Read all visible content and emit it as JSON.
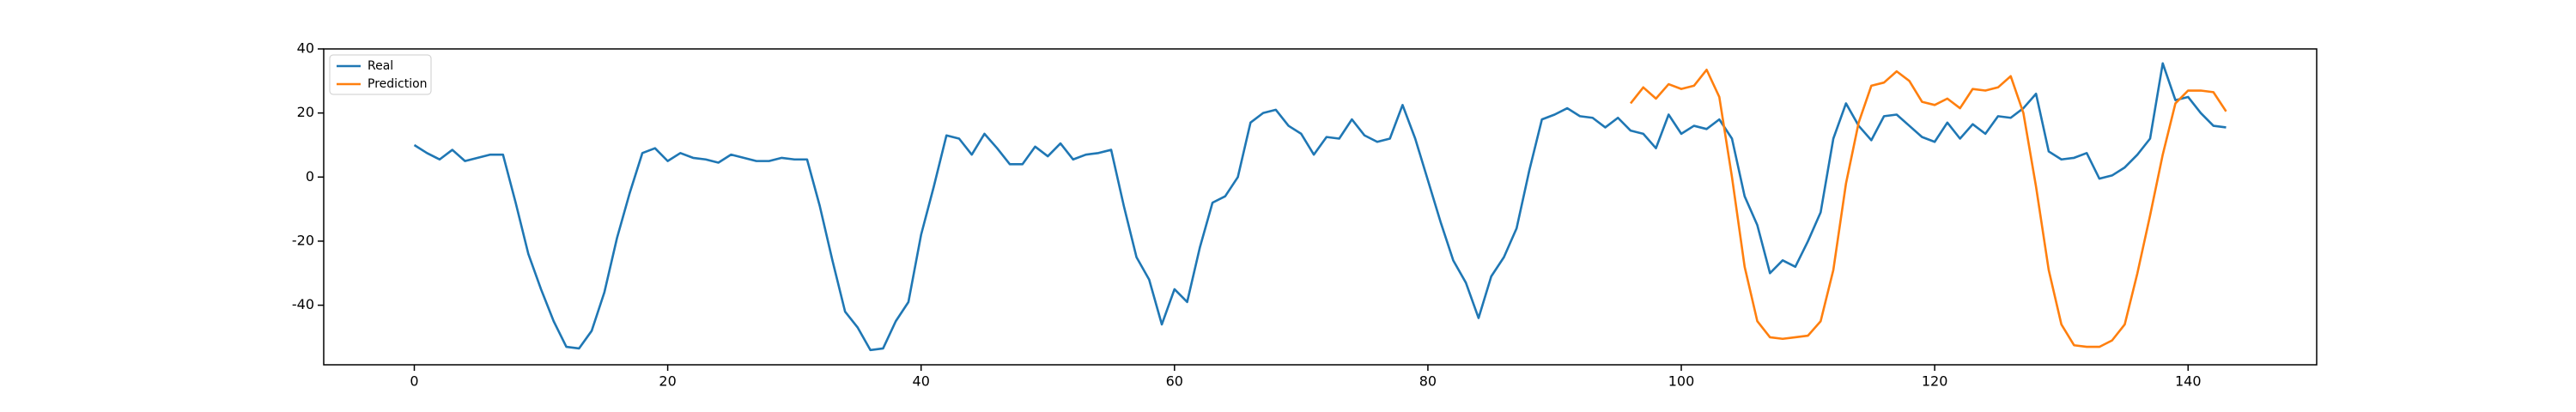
{
  "chart_data": {
    "type": "line",
    "xlim": [
      -7.15,
      150.15
    ],
    "ylim": [
      -58.6,
      40.0
    ],
    "xticks": [
      0,
      20,
      40,
      60,
      80,
      100,
      120,
      140
    ],
    "yticks": [
      -40,
      -20,
      0,
      20,
      40
    ],
    "legend": "upper left",
    "series": [
      {
        "name": "Real",
        "color": "#1f77b4",
        "x": [
          0,
          1,
          2,
          3,
          4,
          5,
          6,
          7,
          8,
          9,
          10,
          11,
          12,
          13,
          14,
          15,
          16,
          17,
          18,
          19,
          20,
          21,
          22,
          23,
          24,
          25,
          26,
          27,
          28,
          29,
          30,
          31,
          32,
          33,
          34,
          35,
          36,
          37,
          38,
          39,
          40,
          41,
          42,
          43,
          44,
          45,
          46,
          47,
          48,
          49,
          50,
          51,
          52,
          53,
          54,
          55,
          56,
          57,
          58,
          59,
          60,
          61,
          62,
          63,
          64,
          65,
          66,
          67,
          68,
          69,
          70,
          71,
          72,
          73,
          74,
          75,
          76,
          77,
          78,
          79,
          80,
          81,
          82,
          83,
          84,
          85,
          86,
          87,
          88,
          89,
          90,
          91,
          92,
          93,
          94,
          95,
          96,
          97,
          98,
          99,
          100,
          101,
          102,
          103,
          104,
          105,
          106,
          107,
          108,
          109,
          110,
          111,
          112,
          113,
          114,
          115,
          116,
          117,
          118,
          119,
          120,
          121,
          122,
          123,
          124,
          125,
          126,
          127,
          128,
          129,
          130,
          131,
          132,
          133,
          134,
          135,
          136,
          137,
          138,
          139,
          140,
          141,
          142,
          143
        ],
        "values": [
          10,
          7.5,
          5.5,
          8.5,
          5,
          6,
          7,
          7,
          -8,
          -24,
          -35,
          -45,
          -53,
          -53.5,
          -48,
          -36,
          -19,
          -5,
          7.5,
          9,
          5,
          7.5,
          6,
          5.5,
          4.5,
          7,
          6,
          5,
          5,
          6,
          5.5,
          5.5,
          -9,
          -26,
          -42,
          -47,
          -54,
          -53.5,
          -45,
          -39,
          -18,
          -3,
          13,
          12,
          7,
          13.5,
          9,
          4,
          4,
          9.5,
          6.5,
          10.5,
          5.5,
          7,
          7.5,
          8.5,
          -9,
          -25,
          -32,
          -46,
          -35,
          -39,
          -22,
          -8,
          -6,
          0,
          17,
          20,
          21,
          16,
          13.5,
          7,
          12.5,
          12,
          18,
          13,
          11,
          12,
          22.5,
          12,
          -1,
          -14,
          -26,
          -33,
          -44,
          -31,
          -25,
          -16,
          2,
          18,
          19.5,
          21.5,
          19,
          18.5,
          15.5,
          18.5,
          14.5,
          13.5,
          9,
          19.5,
          13.5,
          16,
          15,
          18,
          12,
          -6,
          -15,
          -30,
          -26,
          -28,
          -20,
          -11,
          12,
          23,
          16,
          11.5,
          19,
          19.5,
          16,
          12.5,
          11,
          17,
          12,
          16.5,
          13.5,
          19,
          18.5,
          21.5,
          26,
          8,
          5.5,
          6,
          7.5,
          -0.5,
          0.5,
          3,
          7,
          12,
          35.5,
          24,
          25,
          20,
          16,
          15.5
        ]
      },
      {
        "name": "Prediction",
        "color": "#ff7f0e",
        "x": [
          96,
          97,
          98,
          99,
          100,
          101,
          102,
          103,
          104,
          105,
          106,
          107,
          108,
          109,
          110,
          111,
          112,
          113,
          114,
          115,
          116,
          117,
          118,
          119,
          120,
          121,
          122,
          123,
          124,
          125,
          126,
          127,
          128,
          129,
          130,
          131,
          132,
          133,
          134,
          135,
          136,
          137,
          138,
          139,
          140,
          141,
          142,
          143
        ],
        "values": [
          23,
          28,
          24.5,
          29,
          27.5,
          28.5,
          33.5,
          25,
          0,
          -28,
          -45,
          -50,
          -50.5,
          -50,
          -49.5,
          -45,
          -29,
          -2,
          17,
          28.5,
          29.5,
          33,
          30,
          23.5,
          22.5,
          24.5,
          21.5,
          27.5,
          27,
          28,
          31.5,
          20,
          -3,
          -29,
          -46,
          -52.5,
          -53,
          -53,
          -51,
          -46,
          -30,
          -12,
          7,
          23,
          27,
          27,
          26.5,
          20.5
        ]
      }
    ]
  }
}
